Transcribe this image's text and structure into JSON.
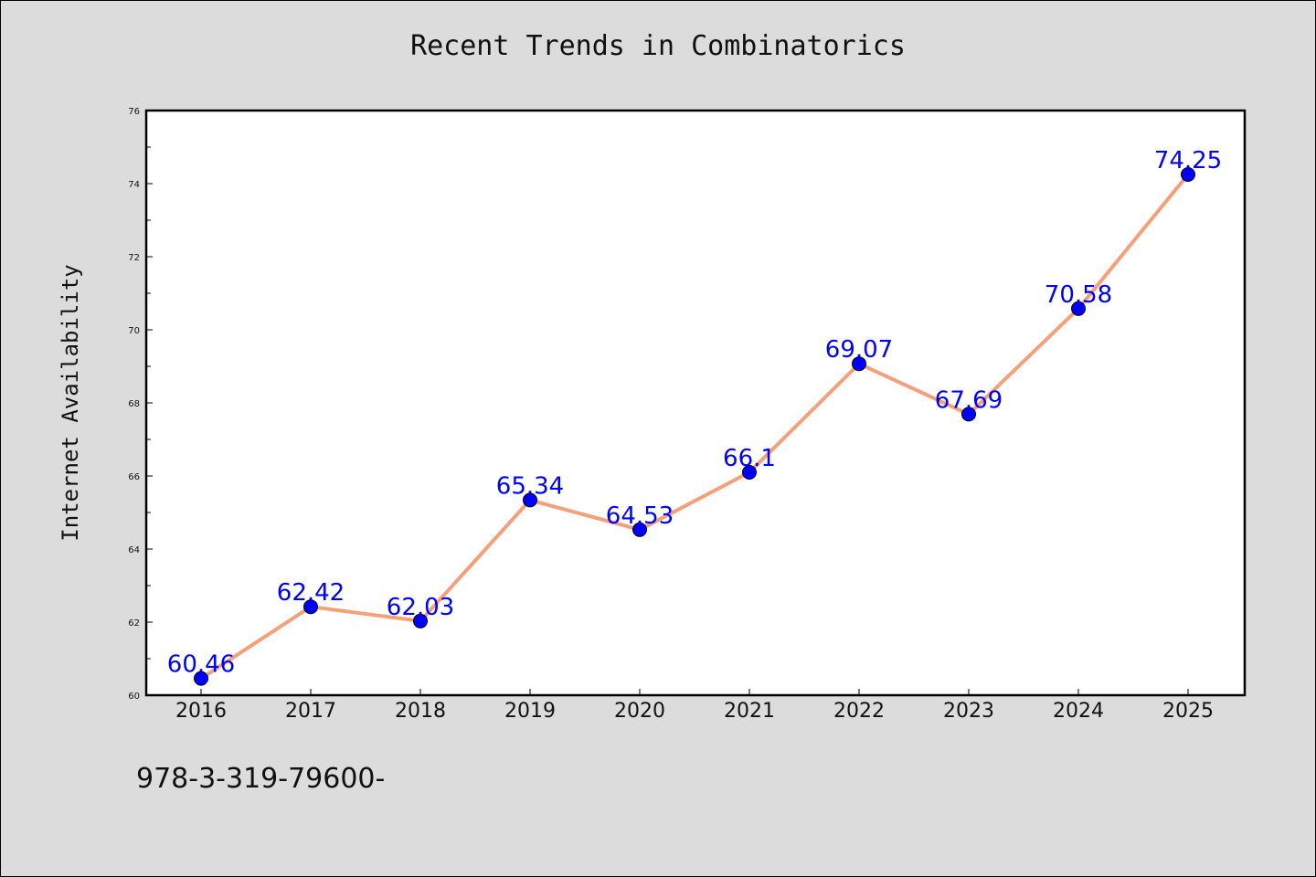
{
  "chart_data": {
    "type": "line",
    "title": "Recent Trends in Combinatorics",
    "xlabel": "",
    "ylabel": "Internet Availability",
    "categories": [
      "2016",
      "2017",
      "2018",
      "2019",
      "2020",
      "2021",
      "2022",
      "2023",
      "2024",
      "2025"
    ],
    "series": [
      {
        "values": [
          60.46,
          62.42,
          62.03,
          65.34,
          64.53,
          66.1,
          69.07,
          67.69,
          70.58,
          74.25
        ],
        "labels": [
          "60.46",
          "62.42",
          "62.03",
          "65.34",
          "64.53",
          "66.1",
          "69.07",
          "67.69",
          "70.58",
          "74.25"
        ]
      }
    ],
    "ylim": [
      60,
      76
    ],
    "yticks": [
      "60",
      "62",
      "64",
      "66",
      "68",
      "70",
      "72",
      "74",
      "76"
    ],
    "grid": false,
    "colors": {
      "line": "#f5a07a",
      "marker": "#0000ff",
      "label": "#0000ff",
      "plot_bg": "#ffffff",
      "figure_bg": "#dcdcdc"
    }
  },
  "footer": {
    "text": "978-3-319-79600-"
  }
}
